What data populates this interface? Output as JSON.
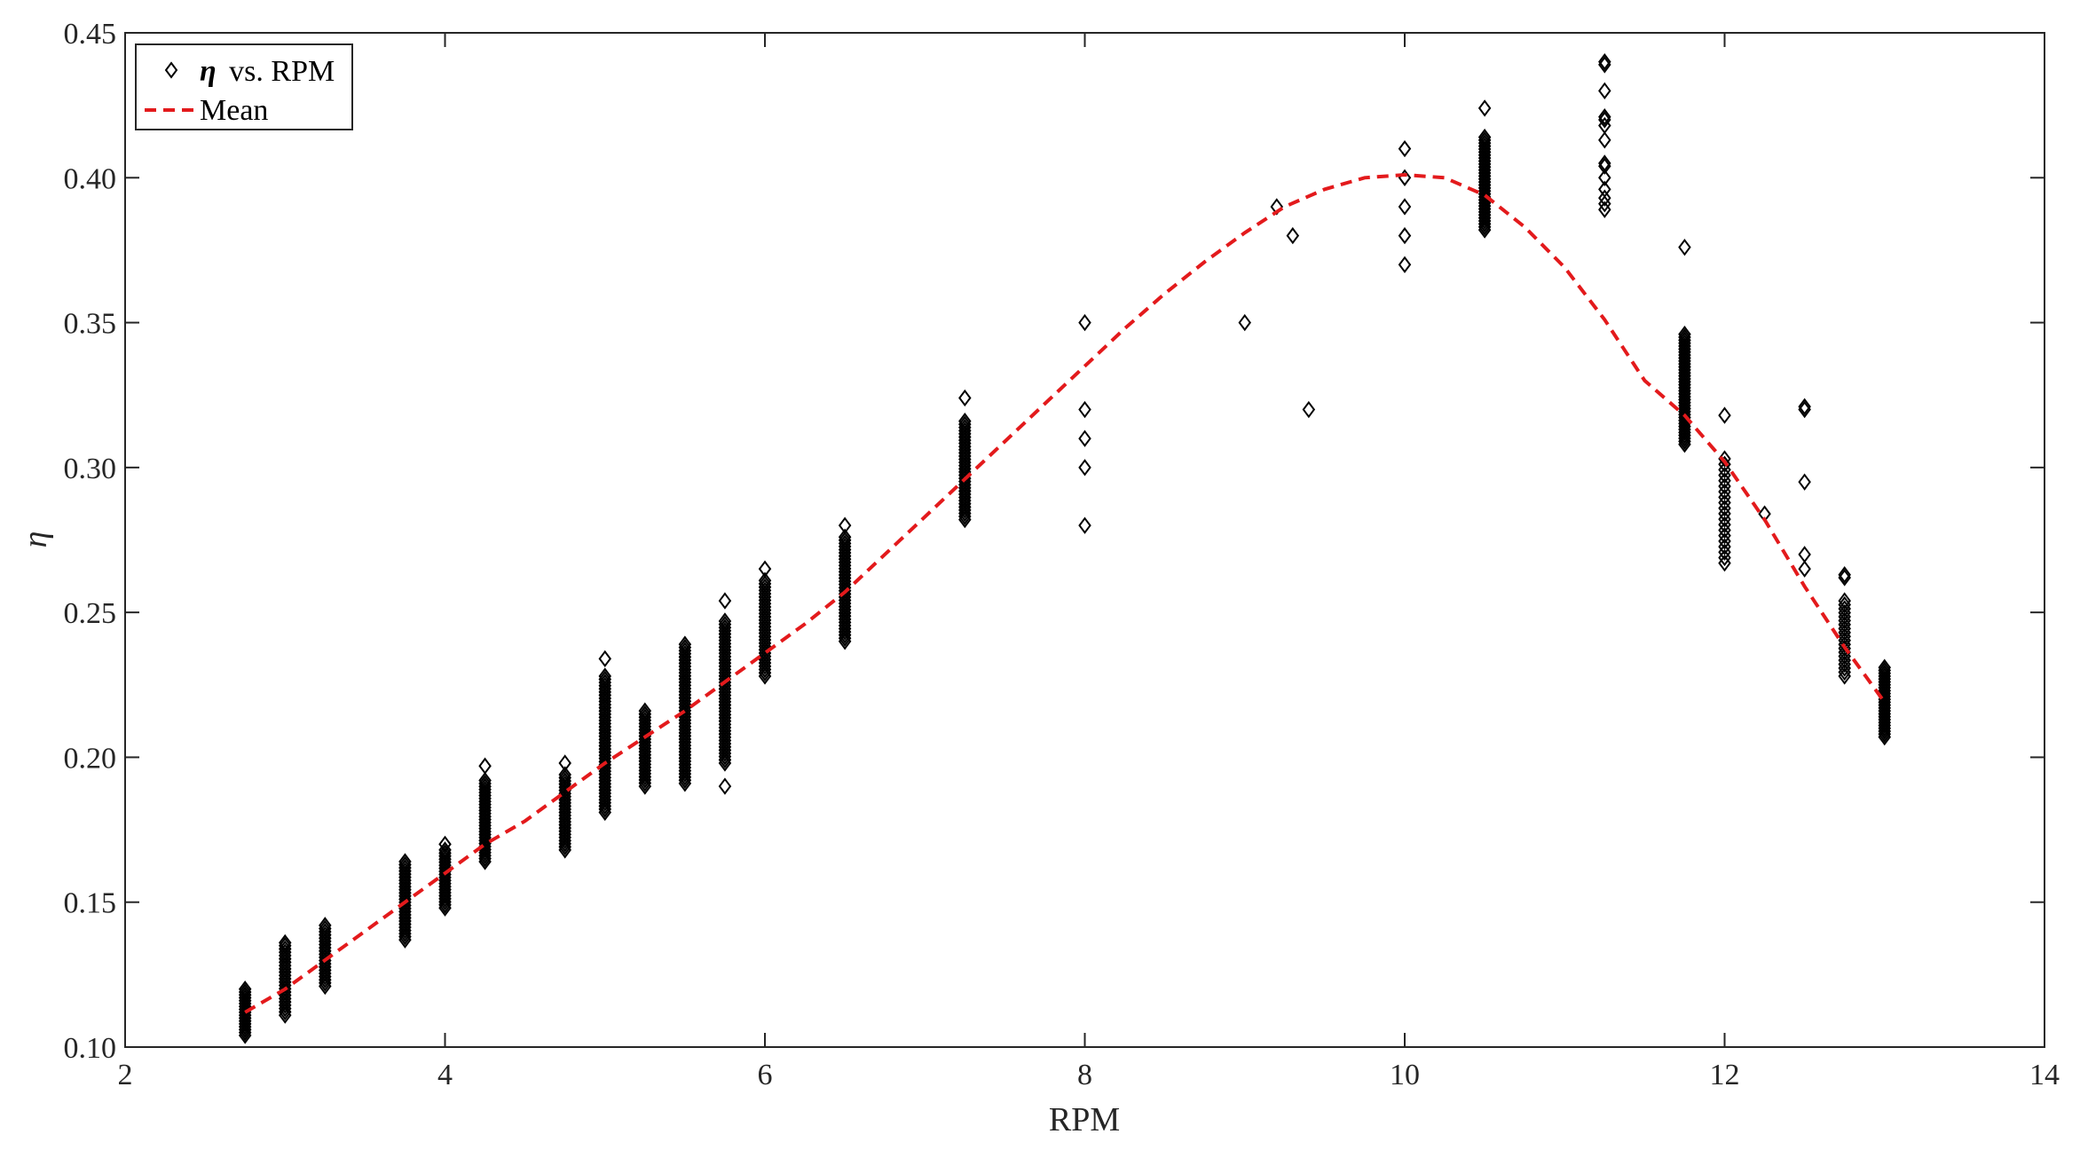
{
  "chart_data": {
    "type": "scatter",
    "xlabel": "RPM",
    "ylabel": "η",
    "xlim": [
      2,
      14
    ],
    "ylim": [
      0.1,
      0.45
    ],
    "xticks": [
      "2",
      "4",
      "6",
      "8",
      "10",
      "12",
      "14"
    ],
    "yticks": [
      "0.10",
      "0.15",
      "0.20",
      "0.25",
      "0.30",
      "0.35",
      "0.40",
      "0.45"
    ],
    "grid": false,
    "box": true,
    "legend": {
      "placement": "top-left",
      "entries": [
        {
          "series": "eta",
          "symbol": "η",
          "label": "vs. RPM"
        },
        {
          "series": "mean",
          "label": "Mean"
        }
      ]
    },
    "colors": {
      "points": "#000000",
      "mean": "#e31a1c",
      "axes": "#262626"
    },
    "series": [
      {
        "id": "eta",
        "name": "η vs. RPM",
        "marker": "diamond",
        "groups": [
          {
            "x": 2.75,
            "min": 0.104,
            "max": 0.12,
            "n": 17,
            "extra": []
          },
          {
            "x": 3.0,
            "min": 0.111,
            "max": 0.135,
            "n": 22,
            "extra": [
              0.136
            ]
          },
          {
            "x": 3.25,
            "min": 0.121,
            "max": 0.142,
            "n": 20,
            "extra": []
          },
          {
            "x": 3.75,
            "min": 0.137,
            "max": 0.164,
            "n": 26,
            "extra": []
          },
          {
            "x": 4.0,
            "min": 0.148,
            "max": 0.168,
            "n": 20,
            "extra": [
              0.17
            ]
          },
          {
            "x": 4.25,
            "min": 0.164,
            "max": 0.192,
            "n": 28,
            "extra": [
              0.197
            ]
          },
          {
            "x": 4.75,
            "min": 0.168,
            "max": 0.194,
            "n": 25,
            "extra": [
              0.198
            ]
          },
          {
            "x": 5.0,
            "min": 0.181,
            "max": 0.228,
            "n": 44,
            "extra": [
              0.234
            ]
          },
          {
            "x": 5.25,
            "min": 0.19,
            "max": 0.216,
            "n": 25,
            "extra": []
          },
          {
            "x": 5.5,
            "min": 0.191,
            "max": 0.239,
            "n": 45,
            "extra": []
          },
          {
            "x": 5.75,
            "min": 0.198,
            "max": 0.247,
            "n": 45,
            "extra": [
              0.19,
              0.254
            ]
          },
          {
            "x": 6.0,
            "min": 0.228,
            "max": 0.261,
            "n": 30,
            "extra": [
              0.265
            ]
          },
          {
            "x": 6.5,
            "min": 0.24,
            "max": 0.276,
            "n": 34,
            "extra": [
              0.28
            ]
          },
          {
            "x": 7.25,
            "min": 0.282,
            "max": 0.316,
            "n": 32,
            "extra": [
              0.324
            ]
          },
          {
            "x": 8.0,
            "min": 0.0,
            "max": 0.0,
            "n": 0,
            "extra": [
              0.28,
              0.3,
              0.31,
              0.32,
              0.35
            ]
          },
          {
            "x": 9.0,
            "min": 0.0,
            "max": 0.0,
            "n": 0,
            "extra": [
              0.35
            ]
          },
          {
            "x": 9.2,
            "min": 0.0,
            "max": 0.0,
            "n": 0,
            "extra": [
              0.39
            ]
          },
          {
            "x": 9.3,
            "min": 0.0,
            "max": 0.0,
            "n": 0,
            "extra": [
              0.38
            ]
          },
          {
            "x": 9.4,
            "min": 0.0,
            "max": 0.0,
            "n": 0,
            "extra": [
              0.32
            ]
          },
          {
            "x": 10.0,
            "min": 0.0,
            "max": 0.0,
            "n": 0,
            "extra": [
              0.37,
              0.38,
              0.39,
              0.4,
              0.41
            ]
          },
          {
            "x": 10.5,
            "min": 0.382,
            "max": 0.414,
            "n": 32,
            "extra": [
              0.424
            ]
          },
          {
            "x": 11.25,
            "min": 0.0,
            "max": 0.0,
            "n": 0,
            "extra": [
              0.389,
              0.391,
              0.393,
              0.396,
              0.4,
              0.404,
              0.405,
              0.413,
              0.418,
              0.42,
              0.421,
              0.43,
              0.439,
              0.44
            ]
          },
          {
            "x": 11.75,
            "min": 0.308,
            "max": 0.346,
            "n": 38,
            "extra": [
              0.376
            ]
          },
          {
            "x": 12.0,
            "min": 0.267,
            "max": 0.303,
            "n": 20,
            "extra": [
              0.318
            ]
          },
          {
            "x": 12.25,
            "min": 0.0,
            "max": 0.0,
            "n": 0,
            "extra": [
              0.284
            ]
          },
          {
            "x": 12.5,
            "min": 0.0,
            "max": 0.0,
            "n": 0,
            "extra": [
              0.265,
              0.27,
              0.295,
              0.32,
              0.321
            ]
          },
          {
            "x": 12.75,
            "min": 0.228,
            "max": 0.254,
            "n": 20,
            "extra": [
              0.262,
              0.263
            ]
          },
          {
            "x": 13.0,
            "min": 0.207,
            "max": 0.231,
            "n": 25,
            "extra": []
          }
        ]
      },
      {
        "id": "mean",
        "name": "Mean",
        "line": "dashed",
        "x": [
          2.75,
          3.0,
          3.25,
          3.5,
          3.75,
          4.0,
          4.25,
          4.5,
          4.75,
          5.0,
          5.25,
          5.5,
          5.75,
          6.0,
          6.25,
          6.5,
          6.75,
          7.0,
          7.25,
          7.5,
          7.75,
          8.0,
          8.25,
          8.5,
          8.75,
          9.0,
          9.25,
          9.5,
          9.75,
          10.0,
          10.25,
          10.5,
          10.75,
          11.0,
          11.25,
          11.5,
          11.75,
          12.0,
          12.25,
          12.5,
          12.75,
          13.0
        ],
        "y": [
          0.112,
          0.12,
          0.13,
          0.14,
          0.15,
          0.16,
          0.17,
          0.178,
          0.188,
          0.198,
          0.207,
          0.216,
          0.226,
          0.236,
          0.246,
          0.257,
          0.27,
          0.283,
          0.296,
          0.309,
          0.322,
          0.335,
          0.348,
          0.36,
          0.371,
          0.381,
          0.39,
          0.396,
          0.4,
          0.401,
          0.4,
          0.394,
          0.383,
          0.369,
          0.351,
          0.33,
          0.318,
          0.302,
          0.282,
          0.259,
          0.238,
          0.219
        ]
      }
    ]
  }
}
